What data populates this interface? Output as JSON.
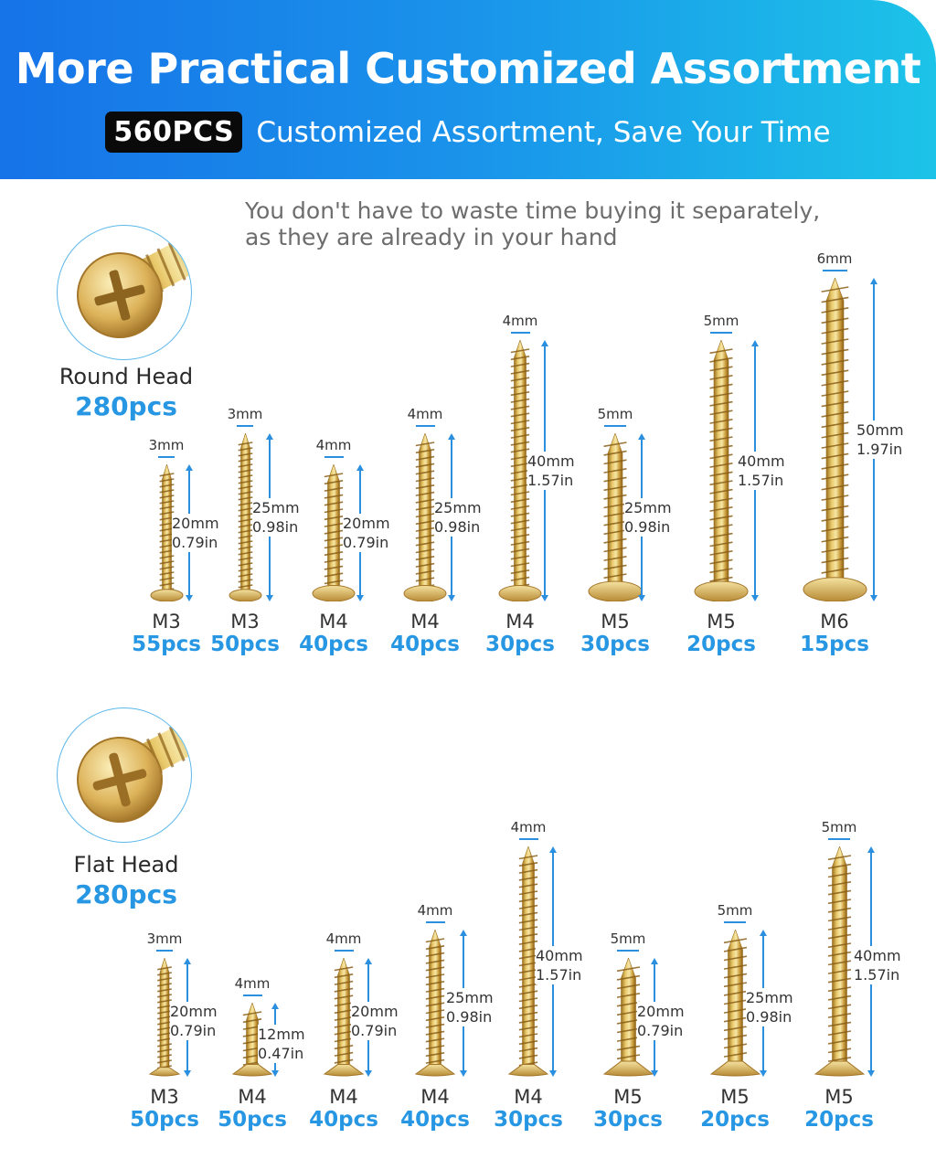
{
  "header": {
    "title": "More Practical Customized Assortment",
    "badge": "560PCS",
    "subtitle": "Customized Assortment, Save Your Time"
  },
  "tagline": {
    "line1": "You don't have to waste time buying it separately,",
    "line2": "as they are already in your hand"
  },
  "colors": {
    "banner_start": "#1673e8",
    "banner_end": "#1cc3e8",
    "accent": "#2797e3",
    "dimension_line": "#2b8fe0",
    "screw_gold": "#c9a040"
  },
  "round_head": {
    "name": "Round Head",
    "total": "280pcs",
    "icon": "round-head-screw-icon",
    "screws": [
      {
        "diameter": "3mm",
        "length_mm": "20mm",
        "length_in": "0.79in",
        "size": "M3",
        "qty": "55pcs"
      },
      {
        "diameter": "3mm",
        "length_mm": "25mm",
        "length_in": "0.98in",
        "size": "M3",
        "qty": "50pcs"
      },
      {
        "diameter": "4mm",
        "length_mm": "20mm",
        "length_in": "0.79in",
        "size": "M4",
        "qty": "40pcs"
      },
      {
        "diameter": "4mm",
        "length_mm": "25mm",
        "length_in": "0.98in",
        "size": "M4",
        "qty": "40pcs"
      },
      {
        "diameter": "4mm",
        "length_mm": "40mm",
        "length_in": "1.57in",
        "size": "M4",
        "qty": "30pcs"
      },
      {
        "diameter": "5mm",
        "length_mm": "25mm",
        "length_in": "0.98in",
        "size": "M5",
        "qty": "30pcs"
      },
      {
        "diameter": "5mm",
        "length_mm": "40mm",
        "length_in": "1.57in",
        "size": "M5",
        "qty": "20pcs"
      },
      {
        "diameter": "6mm",
        "length_mm": "50mm",
        "length_in": "1.97in",
        "size": "M6",
        "qty": "15pcs"
      }
    ]
  },
  "flat_head": {
    "name": "Flat Head",
    "total": "280pcs",
    "icon": "flat-head-screw-icon",
    "screws": [
      {
        "diameter": "3mm",
        "length_mm": "20mm",
        "length_in": "0.79in",
        "size": "M3",
        "qty": "50pcs"
      },
      {
        "diameter": "4mm",
        "length_mm": "12mm",
        "length_in": "0.47in",
        "size": "M4",
        "qty": "50pcs"
      },
      {
        "diameter": "4mm",
        "length_mm": "20mm",
        "length_in": "0.79in",
        "size": "M4",
        "qty": "40pcs"
      },
      {
        "diameter": "4mm",
        "length_mm": "25mm",
        "length_in": "0.98in",
        "size": "M4",
        "qty": "40pcs"
      },
      {
        "diameter": "4mm",
        "length_mm": "40mm",
        "length_in": "1.57in",
        "size": "M4",
        "qty": "30pcs"
      },
      {
        "diameter": "5mm",
        "length_mm": "20mm",
        "length_in": "0.79in",
        "size": "M5",
        "qty": "30pcs"
      },
      {
        "diameter": "5mm",
        "length_mm": "25mm",
        "length_in": "0.98in",
        "size": "M5",
        "qty": "20pcs"
      },
      {
        "diameter": "5mm",
        "length_mm": "40mm",
        "length_in": "1.57in",
        "size": "M5",
        "qty": "20pcs"
      }
    ]
  }
}
